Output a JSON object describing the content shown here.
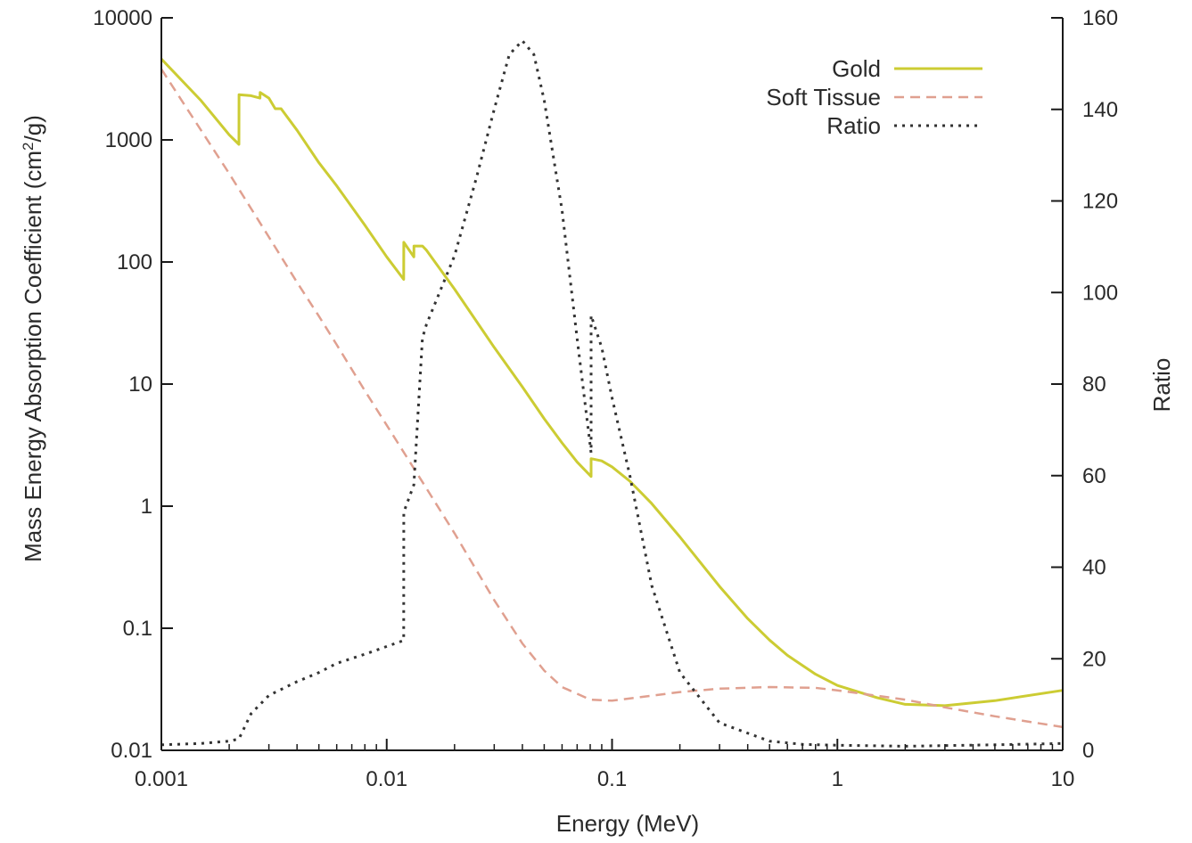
{
  "chart_data": {
    "type": "line",
    "title": "",
    "xlabel": "Energy (MeV)",
    "ylabel_parts": [
      "Mass Energy Absorption Coefficient (cm",
      "2",
      "/g)"
    ],
    "y2label": "Ratio",
    "x_scale": "log",
    "y_scale": "log",
    "y2_scale": "linear",
    "xlim": [
      0.001,
      10
    ],
    "ylim": [
      0.01,
      10000
    ],
    "y2lim": [
      0,
      160
    ],
    "x_ticks": [
      "0.001",
      "0.01",
      "0.1",
      "1",
      "10"
    ],
    "y_ticks": [
      "10000",
      "1000",
      "100",
      "10",
      "1",
      "0.1",
      "0.01"
    ],
    "y2_ticks": [
      "160",
      "140",
      "120",
      "100",
      "80",
      "60",
      "40",
      "20",
      "0"
    ],
    "legend_position": "top-right",
    "series": [
      {
        "name": "Gold",
        "axis": "left",
        "color": "#cccc33",
        "dash": "solid",
        "points": [
          [
            0.001,
            4600
          ],
          [
            0.0015,
            2100
          ],
          [
            0.002,
            1100
          ],
          [
            0.00221,
            920
          ],
          [
            0.002211,
            2350
          ],
          [
            0.0025,
            2300
          ],
          [
            0.00274,
            2200
          ],
          [
            0.002743,
            2450
          ],
          [
            0.003,
            2200
          ],
          [
            0.0032,
            1800
          ],
          [
            0.0034,
            1800
          ],
          [
            0.004,
            1200
          ],
          [
            0.005,
            650
          ],
          [
            0.006,
            420
          ],
          [
            0.008,
            200
          ],
          [
            0.01,
            110
          ],
          [
            0.0119,
            72
          ],
          [
            0.01191,
            145
          ],
          [
            0.0132,
            110
          ],
          [
            0.01321,
            135
          ],
          [
            0.0144,
            135
          ],
          [
            0.015,
            125
          ],
          [
            0.02,
            60
          ],
          [
            0.03,
            20
          ],
          [
            0.04,
            9.5
          ],
          [
            0.05,
            5.2
          ],
          [
            0.06,
            3.3
          ],
          [
            0.07,
            2.3
          ],
          [
            0.0807,
            1.75
          ],
          [
            0.08072,
            2.45
          ],
          [
            0.09,
            2.35
          ],
          [
            0.1,
            2.1
          ],
          [
            0.12,
            1.6
          ],
          [
            0.15,
            1.05
          ],
          [
            0.2,
            0.56
          ],
          [
            0.3,
            0.22
          ],
          [
            0.4,
            0.12
          ],
          [
            0.5,
            0.08
          ],
          [
            0.6,
            0.06
          ],
          [
            0.8,
            0.042
          ],
          [
            1,
            0.034
          ],
          [
            1.5,
            0.027
          ],
          [
            2,
            0.0238
          ],
          [
            3,
            0.0232
          ],
          [
            5,
            0.0255
          ],
          [
            10,
            0.031
          ]
        ]
      },
      {
        "name": "Soft Tissue",
        "axis": "left",
        "color": "#e0a090",
        "dash": "dashed",
        "points": [
          [
            0.001,
            3800
          ],
          [
            0.0015,
            1200
          ],
          [
            0.002,
            530
          ],
          [
            0.003,
            160
          ],
          [
            0.004,
            68
          ],
          [
            0.005,
            36
          ],
          [
            0.006,
            21
          ],
          [
            0.008,
            8.8
          ],
          [
            0.01,
            4.6
          ],
          [
            0.015,
            1.4
          ],
          [
            0.02,
            0.6
          ],
          [
            0.03,
            0.17
          ],
          [
            0.04,
            0.075
          ],
          [
            0.05,
            0.045
          ],
          [
            0.06,
            0.033
          ],
          [
            0.08,
            0.026
          ],
          [
            0.1,
            0.0255
          ],
          [
            0.15,
            0.028
          ],
          [
            0.2,
            0.03
          ],
          [
            0.3,
            0.032
          ],
          [
            0.5,
            0.033
          ],
          [
            0.8,
            0.0325
          ],
          [
            1,
            0.031
          ],
          [
            2,
            0.026
          ],
          [
            3,
            0.0225
          ],
          [
            5,
            0.019
          ],
          [
            10,
            0.0155
          ]
        ]
      },
      {
        "name": "Ratio",
        "axis": "right",
        "color": "#333333",
        "dash": "dotted",
        "points": [
          [
            0.001,
            1.2
          ],
          [
            0.0015,
            1.5
          ],
          [
            0.002,
            2
          ],
          [
            0.00221,
            2.5
          ],
          [
            0.0025,
            8
          ],
          [
            0.00274,
            10
          ],
          [
            0.003,
            12
          ],
          [
            0.004,
            15
          ],
          [
            0.005,
            17
          ],
          [
            0.006,
            19
          ],
          [
            0.008,
            21
          ],
          [
            0.0119,
            24
          ],
          [
            0.01191,
            52
          ],
          [
            0.0132,
            58
          ],
          [
            0.0144,
            90
          ],
          [
            0.015,
            93
          ],
          [
            0.02,
            108
          ],
          [
            0.025,
            125
          ],
          [
            0.03,
            140
          ],
          [
            0.035,
            152
          ],
          [
            0.04,
            155
          ],
          [
            0.045,
            152
          ],
          [
            0.05,
            142
          ],
          [
            0.06,
            118
          ],
          [
            0.07,
            90
          ],
          [
            0.0807,
            65
          ],
          [
            0.08072,
            95
          ],
          [
            0.09,
            88
          ],
          [
            0.1,
            77
          ],
          [
            0.12,
            60
          ],
          [
            0.15,
            36
          ],
          [
            0.2,
            17
          ],
          [
            0.3,
            6
          ],
          [
            0.5,
            2
          ],
          [
            0.7,
            1.3
          ],
          [
            1,
            1.1
          ],
          [
            2,
            0.9
          ],
          [
            5,
            1.2
          ],
          [
            10,
            1.5
          ]
        ]
      }
    ]
  },
  "colors": {
    "axis": "#1a1a1a",
    "gold": "#cccc33",
    "soft_tissue": "#e0a090",
    "ratio": "#333333"
  }
}
